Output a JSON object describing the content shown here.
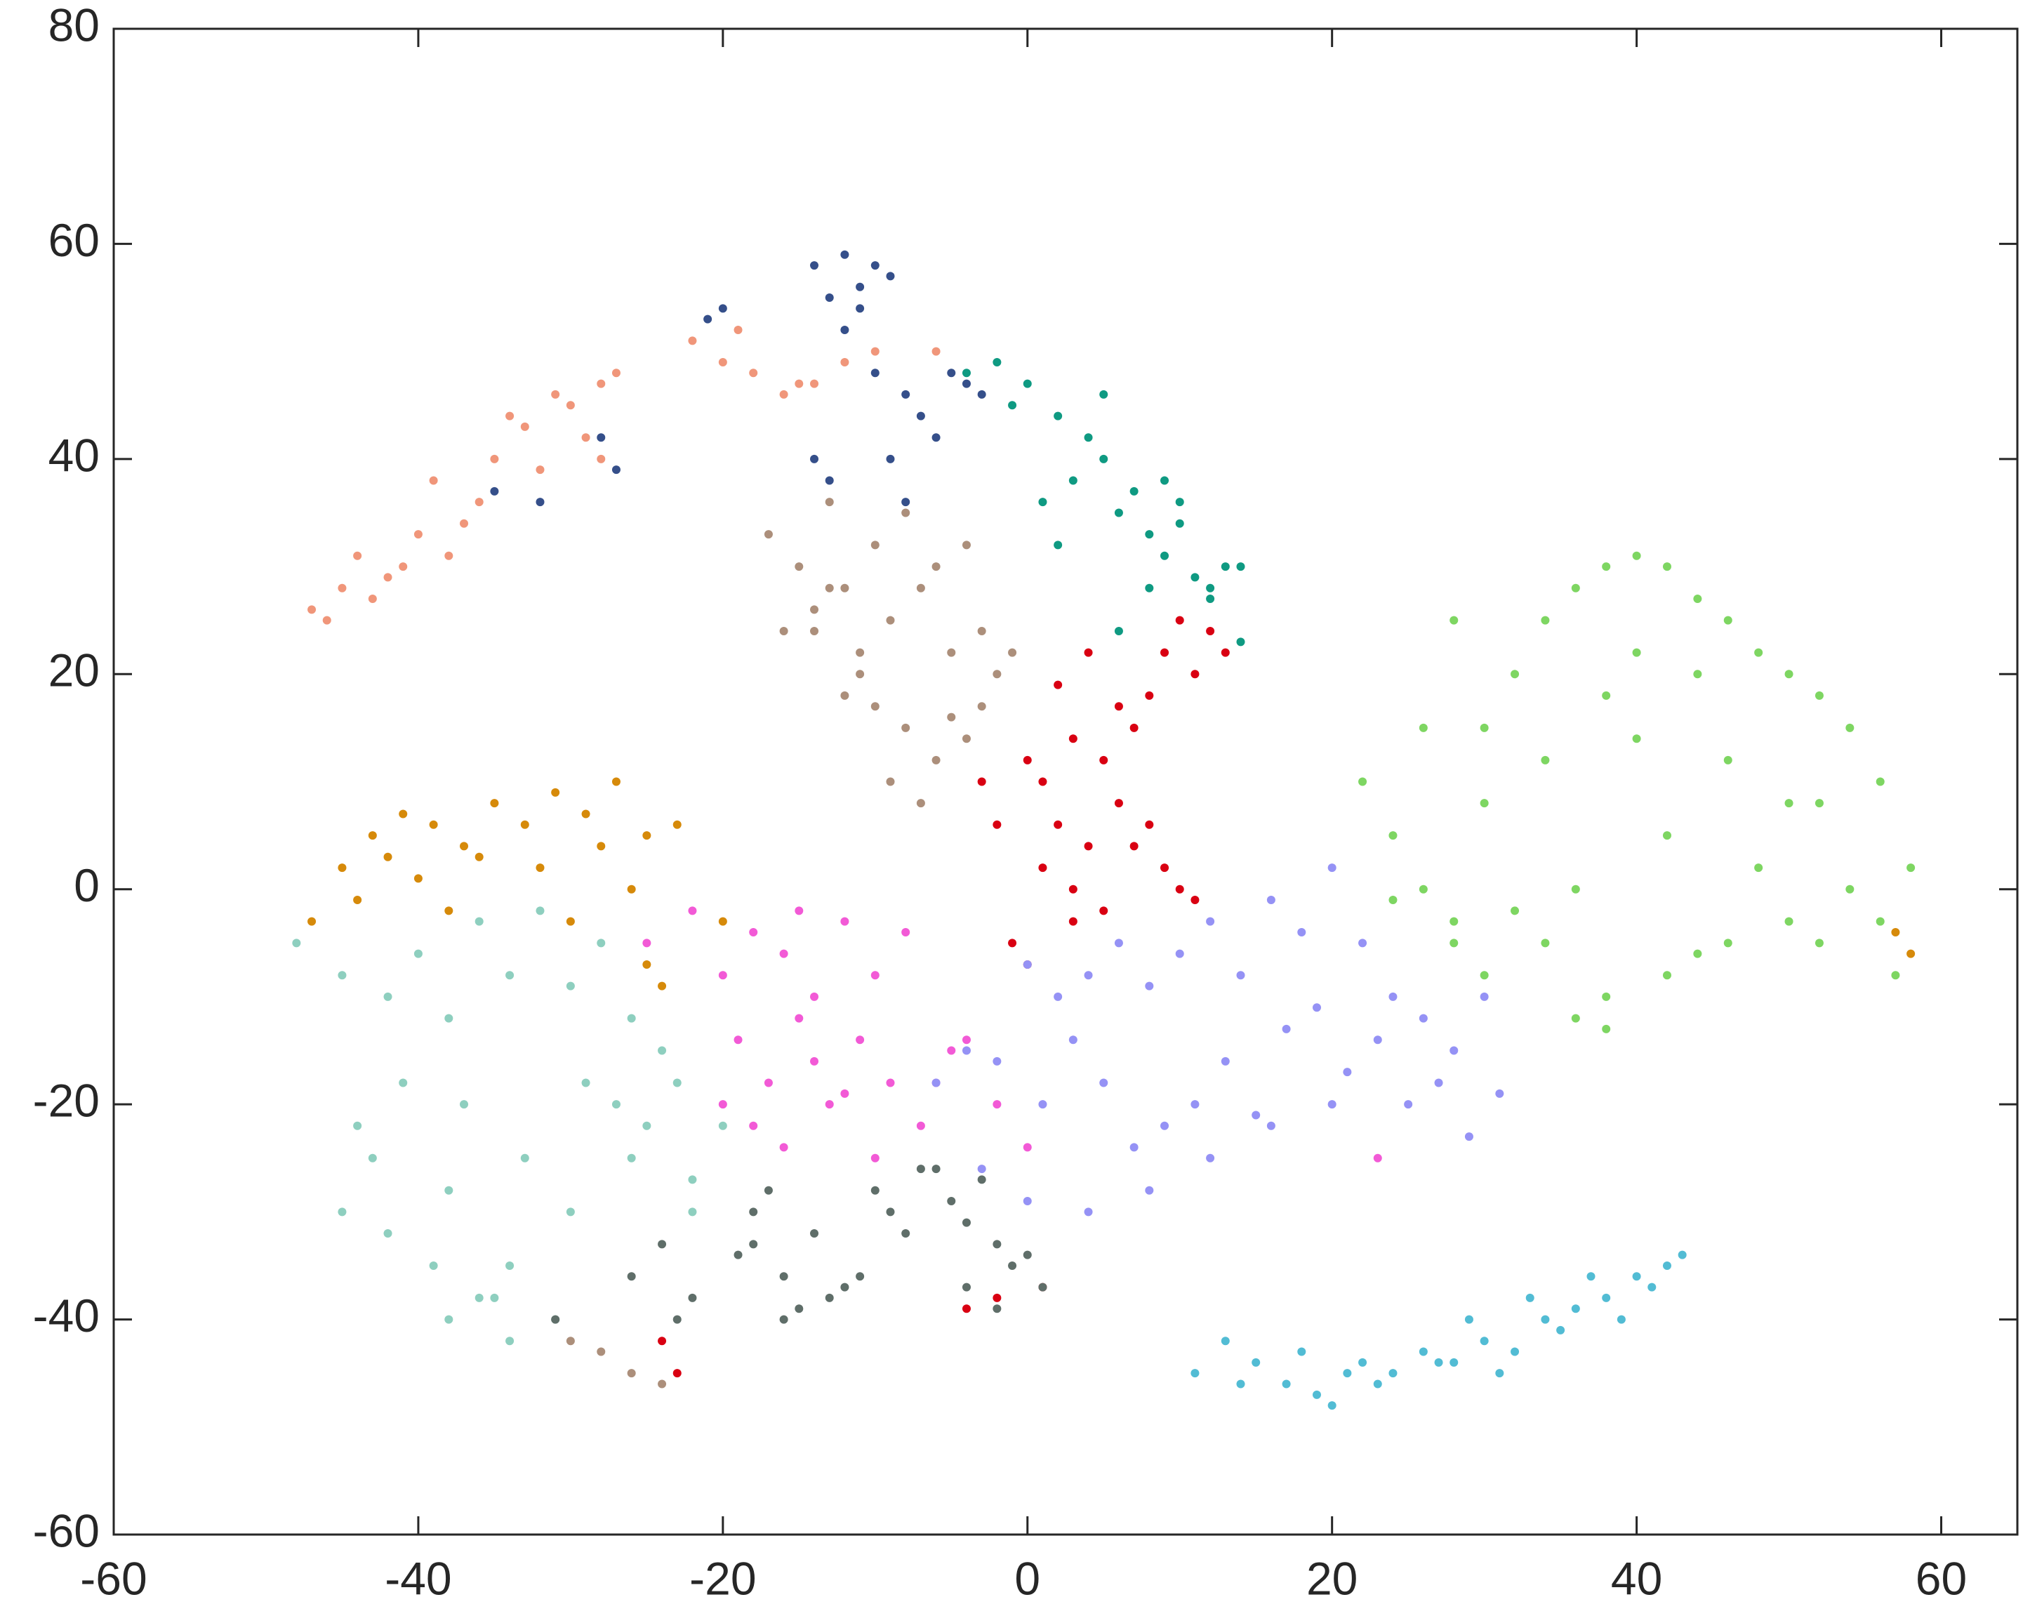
{
  "chart_data": {
    "type": "scatter",
    "xlim": [
      -60,
      65
    ],
    "ylim": [
      -60,
      80
    ],
    "xticks": [
      -60,
      -40,
      -20,
      0,
      20,
      40,
      60
    ],
    "yticks": [
      -60,
      -40,
      -20,
      0,
      20,
      40,
      60,
      80
    ],
    "grid": false,
    "series": [
      {
        "color": "#f0967a",
        "x": [
          -47,
          -45,
          -43,
          -41,
          -44,
          -40,
          -38,
          -36,
          -39,
          -35,
          -33,
          -31,
          -34,
          -30,
          -28,
          -27,
          -32,
          -29,
          -37,
          -42,
          -22,
          -20,
          -18,
          -16,
          -14,
          -12,
          -10,
          -6,
          -19,
          -15,
          -28,
          -46
        ],
        "values": [
          26,
          28,
          27,
          30,
          31,
          33,
          31,
          36,
          38,
          40,
          43,
          46,
          44,
          45,
          47,
          48,
          39,
          42,
          34,
          29,
          51,
          49,
          48,
          46,
          47,
          49,
          50,
          50,
          52,
          47,
          40,
          25
        ]
      },
      {
        "color": "#354f8a",
        "x": [
          -14,
          -12,
          -11,
          -10,
          -13,
          -9,
          -12,
          -11,
          -8,
          -7,
          -6,
          -9,
          -4,
          -5,
          -14,
          -13,
          -10,
          -28,
          -27,
          -35,
          -32,
          -21,
          -20,
          -8,
          -3
        ],
        "values": [
          58,
          59,
          56,
          58,
          55,
          57,
          52,
          54,
          46,
          44,
          42,
          40,
          47,
          48,
          40,
          38,
          48,
          42,
          39,
          37,
          36,
          53,
          54,
          36,
          46
        ]
      },
      {
        "color": "#0f9a82",
        "x": [
          -4,
          -2,
          0,
          2,
          4,
          3,
          5,
          1,
          6,
          7,
          8,
          9,
          10,
          11,
          12,
          13,
          14,
          -1,
          2,
          8,
          5,
          10,
          14,
          12,
          6,
          9
        ],
        "values": [
          48,
          49,
          47,
          44,
          42,
          38,
          40,
          36,
          35,
          37,
          33,
          31,
          34,
          29,
          28,
          30,
          30,
          45,
          32,
          28,
          46,
          36,
          23,
          27,
          24,
          38
        ]
      },
      {
        "color": "#ac8f7b",
        "x": [
          -17,
          -15,
          -13,
          -12,
          -10,
          -8,
          -6,
          -4,
          -16,
          -14,
          -11,
          -9,
          -7,
          -5,
          -3,
          -2,
          -12,
          -10,
          -8,
          -6,
          -4,
          -9,
          -7,
          -11,
          -5,
          -13,
          -14,
          -28,
          -26,
          -24,
          -30,
          -3,
          -1
        ],
        "values": [
          33,
          30,
          36,
          28,
          32,
          35,
          30,
          32,
          24,
          26,
          22,
          25,
          28,
          22,
          24,
          20,
          18,
          17,
          15,
          12,
          14,
          10,
          8,
          20,
          16,
          28,
          24,
          -43,
          -45,
          -46,
          -42,
          17,
          22
        ]
      },
      {
        "color": "#d90012",
        "x": [
          1,
          3,
          5,
          2,
          4,
          6,
          7,
          8,
          9,
          10,
          11,
          12,
          13,
          -3,
          -2,
          0,
          1,
          3,
          5,
          7,
          8,
          9,
          10,
          2,
          4,
          6,
          -1,
          0,
          3,
          11,
          -24,
          -23,
          -4,
          -2,
          1
        ],
        "values": [
          10,
          14,
          12,
          6,
          4,
          8,
          15,
          18,
          22,
          25,
          20,
          24,
          22,
          10,
          6,
          12,
          2,
          0,
          -2,
          4,
          6,
          2,
          0,
          19,
          22,
          17,
          -5,
          -7,
          -3,
          -1,
          -42,
          -45,
          -39,
          -38,
          -37
        ]
      },
      {
        "color": "#7ed662",
        "x": [
          22,
          24,
          26,
          28,
          30,
          32,
          34,
          36,
          38,
          40,
          42,
          44,
          46,
          48,
          50,
          52,
          54,
          56,
          58,
          30,
          34,
          38,
          42,
          46,
          50,
          54,
          26,
          30,
          34,
          38,
          42,
          46,
          50,
          28,
          32,
          36,
          40,
          44,
          48,
          52,
          56,
          24,
          28,
          36,
          44,
          52,
          38,
          40,
          57
        ],
        "values": [
          10,
          5,
          0,
          -5,
          15,
          20,
          25,
          28,
          30,
          31,
          30,
          27,
          25,
          22,
          20,
          18,
          15,
          10,
          2,
          -8,
          -5,
          -10,
          -8,
          -5,
          -3,
          0,
          15,
          8,
          12,
          18,
          5,
          12,
          8,
          25,
          -2,
          0,
          14,
          20,
          2,
          -5,
          -3,
          -1,
          -3,
          -12,
          -6,
          8,
          -13,
          22,
          -8
        ]
      },
      {
        "color": "#d68a0a",
        "x": [
          -47,
          -45,
          -43,
          -41,
          -39,
          -37,
          -35,
          -33,
          -31,
          -29,
          -27,
          -25,
          -23,
          -44,
          -40,
          -36,
          -32,
          -28,
          -26,
          -42,
          -38,
          -30,
          -24,
          57,
          58,
          -20,
          -25
        ],
        "values": [
          -3,
          2,
          5,
          7,
          6,
          4,
          8,
          6,
          9,
          7,
          10,
          5,
          6,
          -1,
          1,
          3,
          2,
          4,
          0,
          3,
          -2,
          -3,
          -9,
          -4,
          -6,
          -3,
          -7
        ]
      },
      {
        "color": "#8ecfbf",
        "x": [
          -48,
          -45,
          -42,
          -40,
          -38,
          -36,
          -34,
          -32,
          -30,
          -28,
          -26,
          -24,
          -44,
          -41,
          -37,
          -33,
          -29,
          -25,
          -22,
          -45,
          -42,
          -38,
          -34,
          -30,
          -26,
          -43,
          -39,
          -35,
          -31,
          -27,
          -23,
          -38,
          -36,
          -34,
          -20,
          -22
        ],
        "values": [
          -5,
          -8,
          -10,
          -6,
          -12,
          -3,
          -8,
          -2,
          -9,
          -5,
          -12,
          -15,
          -22,
          -18,
          -20,
          -25,
          -18,
          -22,
          -27,
          -30,
          -32,
          -28,
          -35,
          -30,
          -25,
          -25,
          -35,
          -38,
          -40,
          -20,
          -18,
          -40,
          -38,
          -42,
          -22,
          -30
        ]
      },
      {
        "color": "#f25ad6",
        "x": [
          -25,
          -22,
          -20,
          -18,
          -16,
          -14,
          -12,
          -10,
          -8,
          -6,
          -19,
          -17,
          -15,
          -13,
          -11,
          -9,
          -7,
          -5,
          -18,
          -16,
          -14,
          -12,
          -10,
          -20,
          -4,
          -2,
          0,
          23,
          -15
        ],
        "values": [
          -5,
          -2,
          -8,
          -4,
          -6,
          -10,
          -3,
          -8,
          -4,
          -18,
          -14,
          -18,
          -12,
          -20,
          -14,
          -18,
          -22,
          -15,
          -22,
          -24,
          -16,
          -19,
          -25,
          -20,
          -14,
          -20,
          -24,
          -25,
          -2
        ]
      },
      {
        "color": "#9592f5",
        "x": [
          -6,
          -4,
          -2,
          0,
          2,
          4,
          6,
          8,
          10,
          12,
          14,
          16,
          18,
          20,
          22,
          24,
          26,
          28,
          30,
          1,
          3,
          5,
          7,
          9,
          11,
          13,
          15,
          17,
          19,
          21,
          23,
          25,
          27,
          29,
          31,
          8,
          12,
          16,
          20,
          -3,
          0,
          4
        ],
        "values": [
          -18,
          -15,
          -16,
          -7,
          -10,
          -8,
          -5,
          -9,
          -6,
          -3,
          -8,
          -1,
          -4,
          2,
          -5,
          -10,
          -12,
          -15,
          -10,
          -20,
          -14,
          -18,
          -24,
          -22,
          -20,
          -16,
          -21,
          -13,
          -11,
          -17,
          -14,
          -20,
          -18,
          -23,
          -19,
          -28,
          -25,
          -22,
          -20,
          -26,
          -29,
          -30
        ]
      },
      {
        "color": "#5f6e69",
        "x": [
          -26,
          -24,
          -23,
          -22,
          -19,
          -18,
          -17,
          -16,
          -15,
          -14,
          -13,
          -12,
          -11,
          -10,
          -9,
          -8,
          -6,
          -5,
          -4,
          -3,
          -2,
          -1,
          0,
          1,
          -7,
          -4,
          -2,
          -16,
          -18,
          -31
        ],
        "values": [
          -36,
          -33,
          -40,
          -38,
          -34,
          -30,
          -28,
          -36,
          -39,
          -32,
          -38,
          -37,
          -36,
          -28,
          -30,
          -32,
          -26,
          -29,
          -31,
          -27,
          -33,
          -35,
          -34,
          -37,
          -26,
          -37,
          -39,
          -40,
          -33,
          -40
        ]
      },
      {
        "color": "#52bcd4",
        "x": [
          11,
          13,
          15,
          17,
          19,
          20,
          21,
          22,
          24,
          26,
          28,
          30,
          32,
          34,
          36,
          38,
          40,
          42,
          43,
          14,
          18,
          23,
          27,
          31,
          35,
          39,
          41,
          29,
          33,
          37
        ],
        "values": [
          -45,
          -42,
          -44,
          -46,
          -47,
          -48,
          -45,
          -44,
          -45,
          -43,
          -44,
          -42,
          -43,
          -40,
          -39,
          -38,
          -36,
          -35,
          -34,
          -46,
          -43,
          -46,
          -44,
          -45,
          -41,
          -40,
          -37,
          -40,
          -38,
          -36
        ]
      }
    ]
  }
}
